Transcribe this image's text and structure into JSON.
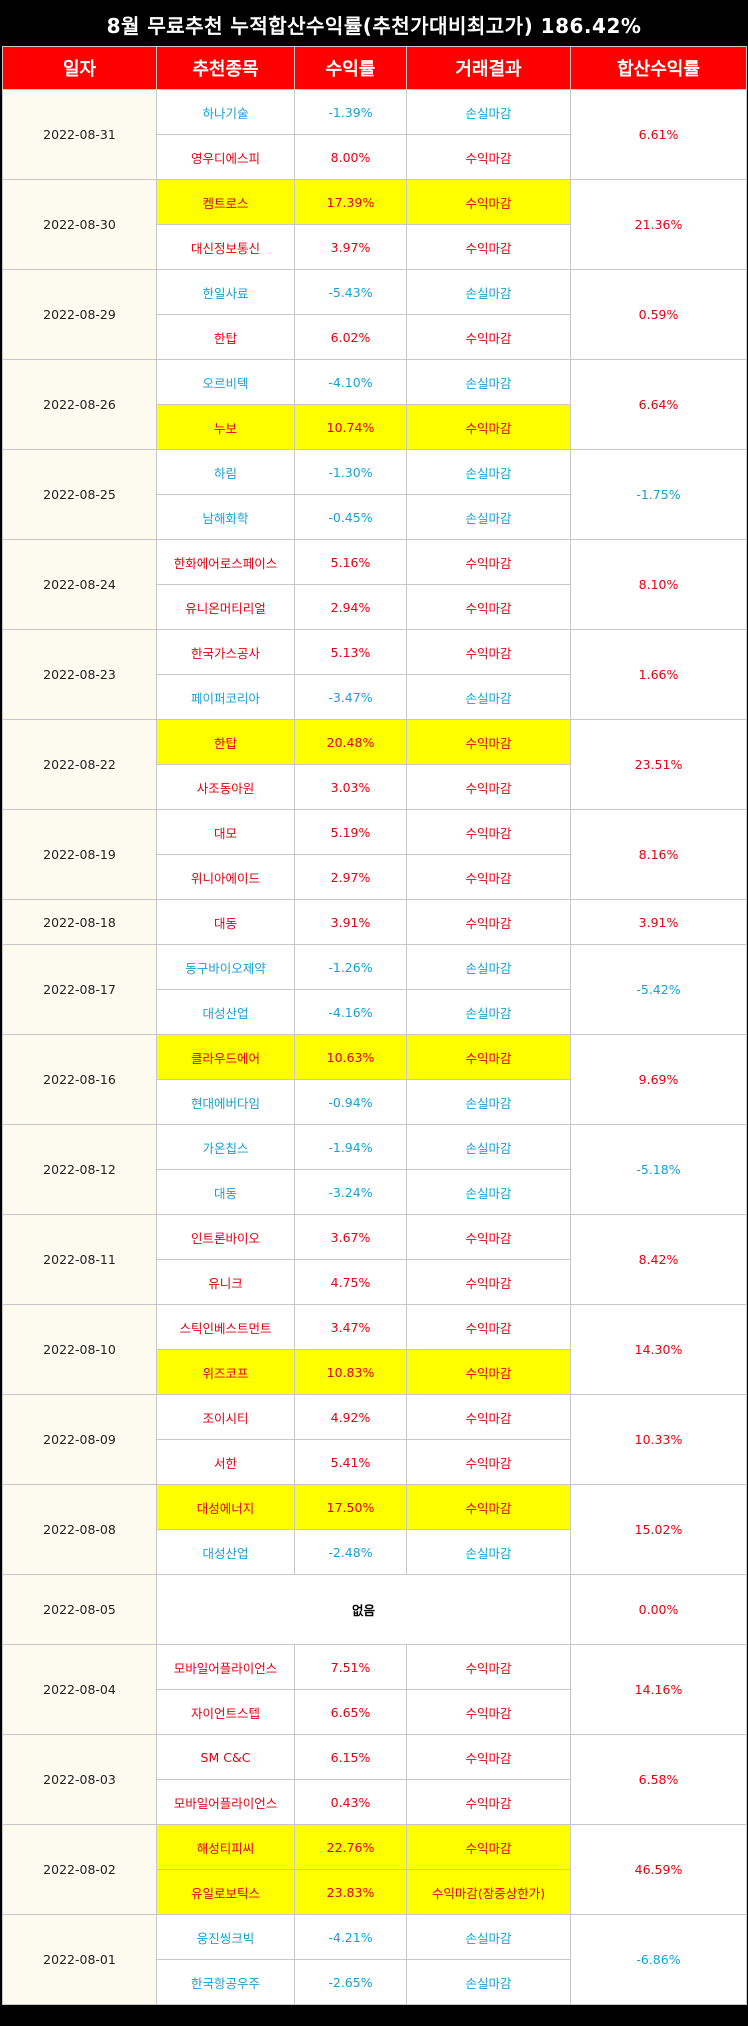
{
  "title": "8월 무료추천 누적합산수익률(추천가대비최고가) 186.42%",
  "headers": [
    "일자",
    "추천종목",
    "수익률",
    "거래결과",
    "합산수익률"
  ],
  "colors": {
    "header_bg": "#ff0000",
    "profit": "#e60012",
    "loss": "#1aa0d6",
    "highlight": "#ffff00"
  },
  "groups": [
    {
      "date": "2022-08-31",
      "total": "6.61%",
      "total_sign": "pos",
      "rows": [
        {
          "stock": "하나기술",
          "rate": "-1.39%",
          "result": "손실마감",
          "sign": "neg",
          "hl": false
        },
        {
          "stock": "영우디에스피",
          "rate": "8.00%",
          "result": "수익마감",
          "sign": "pos",
          "hl": false
        }
      ]
    },
    {
      "date": "2022-08-30",
      "total": "21.36%",
      "total_sign": "pos",
      "rows": [
        {
          "stock": "켐트로스",
          "rate": "17.39%",
          "result": "수익마감",
          "sign": "pos",
          "hl": true
        },
        {
          "stock": "대신정보통신",
          "rate": "3.97%",
          "result": "수익마감",
          "sign": "pos",
          "hl": false
        }
      ]
    },
    {
      "date": "2022-08-29",
      "total": "0.59%",
      "total_sign": "pos",
      "rows": [
        {
          "stock": "한일사료",
          "rate": "-5.43%",
          "result": "손실마감",
          "sign": "neg",
          "hl": false
        },
        {
          "stock": "한탑",
          "rate": "6.02%",
          "result": "수익마감",
          "sign": "pos",
          "hl": false
        }
      ]
    },
    {
      "date": "2022-08-26",
      "total": "6.64%",
      "total_sign": "pos",
      "rows": [
        {
          "stock": "오르비텍",
          "rate": "-4.10%",
          "result": "손실마감",
          "sign": "neg",
          "hl": false
        },
        {
          "stock": "누보",
          "rate": "10.74%",
          "result": "수익마감",
          "sign": "pos",
          "hl": true
        }
      ]
    },
    {
      "date": "2022-08-25",
      "total": "-1.75%",
      "total_sign": "neg",
      "rows": [
        {
          "stock": "하림",
          "rate": "-1.30%",
          "result": "손실마감",
          "sign": "neg",
          "hl": false
        },
        {
          "stock": "남해화학",
          "rate": "-0.45%",
          "result": "손실마감",
          "sign": "neg",
          "hl": false
        }
      ]
    },
    {
      "date": "2022-08-24",
      "total": "8.10%",
      "total_sign": "pos",
      "rows": [
        {
          "stock": "한화에어로스페이스",
          "rate": "5.16%",
          "result": "수익마감",
          "sign": "pos",
          "hl": false
        },
        {
          "stock": "유니온머티리얼",
          "rate": "2.94%",
          "result": "수익마감",
          "sign": "pos",
          "hl": false
        }
      ]
    },
    {
      "date": "2022-08-23",
      "total": "1.66%",
      "total_sign": "pos",
      "rows": [
        {
          "stock": "한국가스공사",
          "rate": "5.13%",
          "result": "수익마감",
          "sign": "pos",
          "hl": false
        },
        {
          "stock": "페이퍼코리아",
          "rate": "-3.47%",
          "result": "손실마감",
          "sign": "neg",
          "hl": false
        }
      ]
    },
    {
      "date": "2022-08-22",
      "total": "23.51%",
      "total_sign": "pos",
      "rows": [
        {
          "stock": "한탑",
          "rate": "20.48%",
          "result": "수익마감",
          "sign": "pos",
          "hl": true
        },
        {
          "stock": "사조동아원",
          "rate": "3.03%",
          "result": "수익마감",
          "sign": "pos",
          "hl": false
        }
      ]
    },
    {
      "date": "2022-08-19",
      "total": "8.16%",
      "total_sign": "pos",
      "rows": [
        {
          "stock": "대모",
          "rate": "5.19%",
          "result": "수익마감",
          "sign": "pos",
          "hl": false
        },
        {
          "stock": "위니아에이드",
          "rate": "2.97%",
          "result": "수익마감",
          "sign": "pos",
          "hl": false
        }
      ]
    },
    {
      "date": "2022-08-18",
      "total": "3.91%",
      "total_sign": "pos",
      "rows": [
        {
          "stock": "대동",
          "rate": "3.91%",
          "result": "수익마감",
          "sign": "pos",
          "hl": false
        }
      ]
    },
    {
      "date": "2022-08-17",
      "total": "-5.42%",
      "total_sign": "neg",
      "rows": [
        {
          "stock": "동구바이오제약",
          "rate": "-1.26%",
          "result": "손실마감",
          "sign": "neg",
          "hl": false
        },
        {
          "stock": "대성산업",
          "rate": "-4.16%",
          "result": "손실마감",
          "sign": "neg",
          "hl": false
        }
      ]
    },
    {
      "date": "2022-08-16",
      "total": "9.69%",
      "total_sign": "pos",
      "rows": [
        {
          "stock": "클라우드에어",
          "rate": "10.63%",
          "result": "수익마감",
          "sign": "pos",
          "hl": true
        },
        {
          "stock": "현대에버다임",
          "rate": "-0.94%",
          "result": "손실마감",
          "sign": "neg",
          "hl": false
        }
      ]
    },
    {
      "date": "2022-08-12",
      "total": "-5.18%",
      "total_sign": "neg",
      "rows": [
        {
          "stock": "가온칩스",
          "rate": "-1.94%",
          "result": "손실마감",
          "sign": "neg",
          "hl": false
        },
        {
          "stock": "대동",
          "rate": "-3.24%",
          "result": "손실마감",
          "sign": "neg",
          "hl": false
        }
      ]
    },
    {
      "date": "2022-08-11",
      "total": "8.42%",
      "total_sign": "pos",
      "rows": [
        {
          "stock": "인트론바이오",
          "rate": "3.67%",
          "result": "수익마감",
          "sign": "pos",
          "hl": false
        },
        {
          "stock": "유니크",
          "rate": "4.75%",
          "result": "수익마감",
          "sign": "pos",
          "hl": false
        }
      ]
    },
    {
      "date": "2022-08-10",
      "total": "14.30%",
      "total_sign": "pos",
      "rows": [
        {
          "stock": "스틱인베스트먼트",
          "rate": "3.47%",
          "result": "수익마감",
          "sign": "pos",
          "hl": false
        },
        {
          "stock": "위즈코프",
          "rate": "10.83%",
          "result": "수익마감",
          "sign": "pos",
          "hl": true
        }
      ]
    },
    {
      "date": "2022-08-09",
      "total": "10.33%",
      "total_sign": "pos",
      "rows": [
        {
          "stock": "조이시티",
          "rate": "4.92%",
          "result": "수익마감",
          "sign": "pos",
          "hl": false
        },
        {
          "stock": "서한",
          "rate": "5.41%",
          "result": "수익마감",
          "sign": "pos",
          "hl": false
        }
      ]
    },
    {
      "date": "2022-08-08",
      "total": "15.02%",
      "total_sign": "pos",
      "rows": [
        {
          "stock": "대성에너지",
          "rate": "17.50%",
          "result": "수익마감",
          "sign": "pos",
          "hl": true
        },
        {
          "stock": "대성산업",
          "rate": "-2.48%",
          "result": "손실마감",
          "sign": "neg",
          "hl": false
        }
      ]
    },
    {
      "date": "2022-08-05",
      "total": "0.00%",
      "total_sign": "pos",
      "none_text": "없음",
      "rows": []
    },
    {
      "date": "2022-08-04",
      "total": "14.16%",
      "total_sign": "pos",
      "rows": [
        {
          "stock": "모바일어플라이언스",
          "rate": "7.51%",
          "result": "수익마감",
          "sign": "pos",
          "hl": false
        },
        {
          "stock": "자이언트스텝",
          "rate": "6.65%",
          "result": "수익마감",
          "sign": "pos",
          "hl": false
        }
      ]
    },
    {
      "date": "2022-08-03",
      "total": "6.58%",
      "total_sign": "pos",
      "rows": [
        {
          "stock": "SM C&C",
          "rate": "6.15%",
          "result": "수익마감",
          "sign": "pos",
          "hl": false
        },
        {
          "stock": "모바일어플라이언스",
          "rate": "0.43%",
          "result": "수익마감",
          "sign": "pos",
          "hl": false
        }
      ]
    },
    {
      "date": "2022-08-02",
      "total": "46.59%",
      "total_sign": "pos",
      "rows": [
        {
          "stock": "해성티피씨",
          "rate": "22.76%",
          "result": "수익마감",
          "sign": "pos",
          "hl": true
        },
        {
          "stock": "유일로보틱스",
          "rate": "23.83%",
          "result": "수익마감(장중상한가)",
          "sign": "pos",
          "hl": true
        }
      ]
    },
    {
      "date": "2022-08-01",
      "total": "-6.86%",
      "total_sign": "neg",
      "rows": [
        {
          "stock": "웅진씽크빅",
          "rate": "-4.21%",
          "result": "손실마감",
          "sign": "neg",
          "hl": false
        },
        {
          "stock": "한국항공우주",
          "rate": "-2.65%",
          "result": "손실마감",
          "sign": "neg",
          "hl": false
        }
      ]
    }
  ]
}
